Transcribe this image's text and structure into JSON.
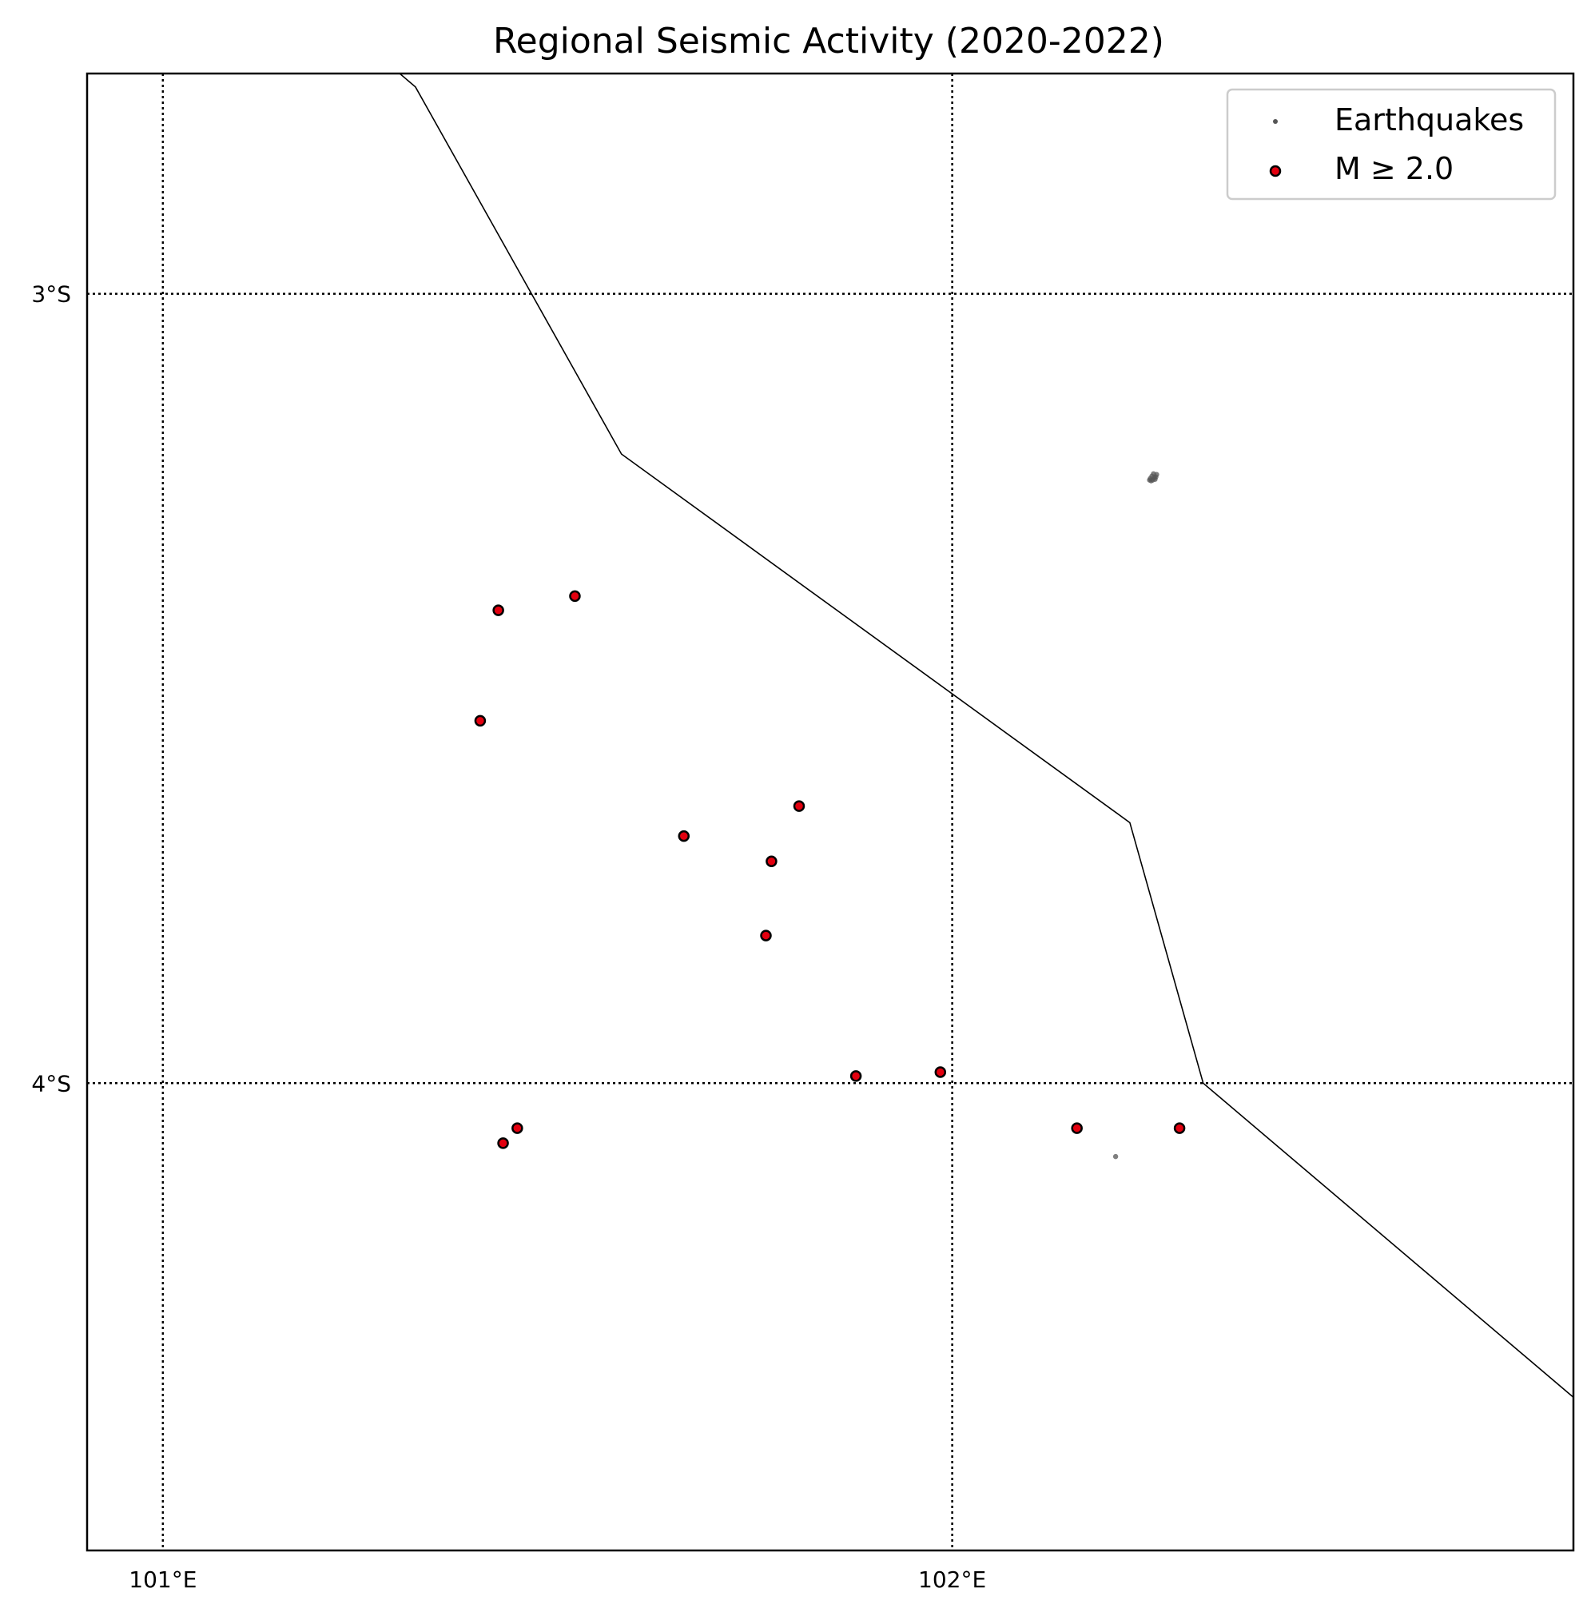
{
  "chart_data": {
    "type": "scatter",
    "title": "Regional Seismic Activity (2020-2022)",
    "xlabel": "",
    "ylabel": "",
    "xlim": [
      100.904,
      102.787
    ],
    "ylim": [
      -4.592,
      -2.721
    ],
    "grid": true,
    "legend_position": "top-right",
    "x_ticks": [
      {
        "value": 101,
        "label": "101°E"
      },
      {
        "value": 102,
        "label": "102°E"
      }
    ],
    "y_ticks": [
      {
        "value": -3,
        "label": "3°S"
      },
      {
        "value": -4,
        "label": "4°S"
      }
    ],
    "legend": [
      {
        "label": "Earthquakes",
        "marker": "small-grey-dot"
      },
      {
        "label": "M ≥ 2.0",
        "marker": "red-dot-black-edge"
      }
    ],
    "series": [
      {
        "name": "Earthquakes",
        "color": "#555555",
        "points": [
          {
            "x": 102.255,
            "y": -3.228
          },
          {
            "x": 102.253,
            "y": -3.231
          },
          {
            "x": 102.258,
            "y": -3.232
          },
          {
            "x": 102.251,
            "y": -3.234
          },
          {
            "x": 102.257,
            "y": -3.235
          },
          {
            "x": 102.254,
            "y": -3.236
          },
          {
            "x": 102.252,
            "y": -3.237
          },
          {
            "x": 102.259,
            "y": -3.229
          },
          {
            "x": 102.256,
            "y": -3.233
          },
          {
            "x": 102.25,
            "y": -3.236
          },
          {
            "x": 102.207,
            "y": -4.093
          }
        ]
      },
      {
        "name": "M ≥ 2.0",
        "color": "#e3000f",
        "edge_color": "#000000",
        "points": [
          {
            "x": 101.425,
            "y": -3.401
          },
          {
            "x": 101.522,
            "y": -3.383
          },
          {
            "x": 101.402,
            "y": -3.541
          },
          {
            "x": 101.66,
            "y": -3.687
          },
          {
            "x": 101.806,
            "y": -3.649
          },
          {
            "x": 101.771,
            "y": -3.719
          },
          {
            "x": 101.764,
            "y": -3.813
          },
          {
            "x": 101.878,
            "y": -3.991
          },
          {
            "x": 101.985,
            "y": -3.986
          },
          {
            "x": 101.449,
            "y": -4.057
          },
          {
            "x": 101.431,
            "y": -4.076
          },
          {
            "x": 102.158,
            "y": -4.057
          },
          {
            "x": 102.288,
            "y": -4.057
          }
        ]
      }
    ],
    "boundary_line": [
      {
        "x": 101.3,
        "y": -2.721
      },
      {
        "x": 101.32,
        "y": -2.738
      },
      {
        "x": 101.581,
        "y": -3.203
      },
      {
        "x": 102.225,
        "y": -3.67
      },
      {
        "x": 102.318,
        "y": -4.0
      },
      {
        "x": 102.787,
        "y": -4.398
      }
    ]
  }
}
